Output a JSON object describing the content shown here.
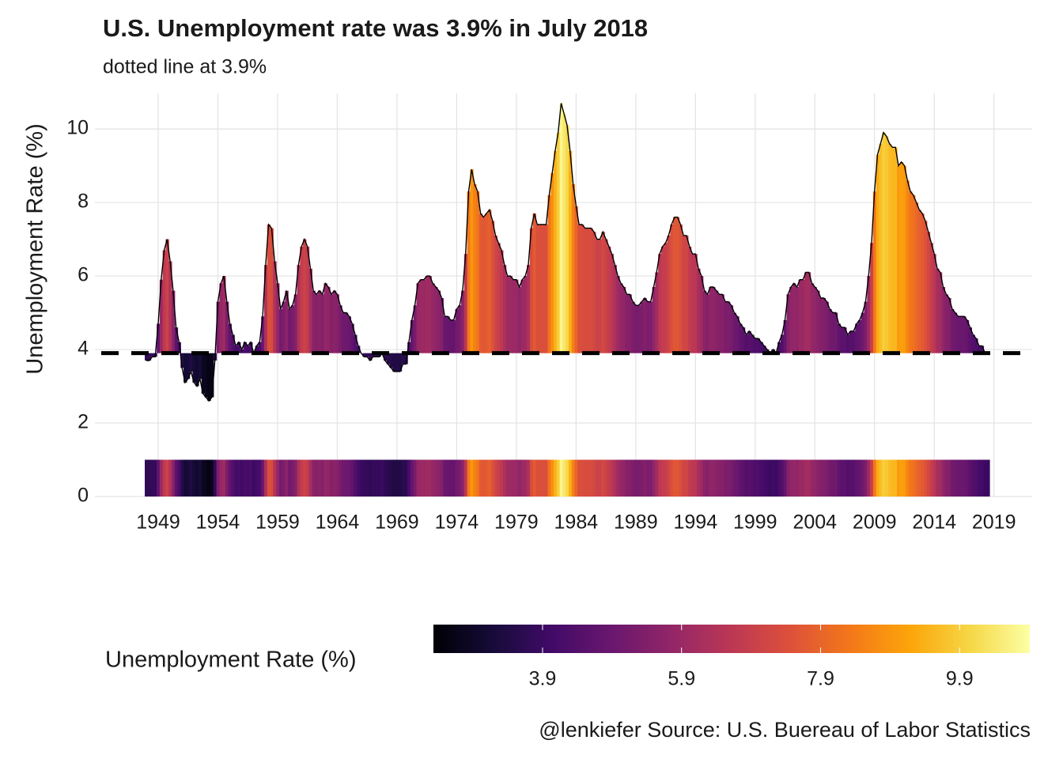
{
  "chart_data": {
    "type": "area",
    "title": "U.S. Unemployment rate was 3.9% in July 2018",
    "subtitle": "dotted line at 3.9%",
    "ylabel": "Unemployment Rate (%)",
    "legend_title": "Unemployment Rate (%)",
    "caption": "@lenkiefer Source: U.S. Buereau of Labor Statistics",
    "reference": 3.9,
    "colormap": "inferno",
    "color_lim": [
      2.33,
      10.91
    ],
    "color_ticks": [
      3.9,
      5.9,
      7.9,
      9.9
    ],
    "xlim": [
      1943.7,
      2022.2
    ],
    "xticks": [
      1949,
      1954,
      1959,
      1964,
      1969,
      1974,
      1979,
      1984,
      1989,
      1994,
      1999,
      2004,
      2009,
      2014,
      2019
    ],
    "ylim": [
      0,
      10.97
    ],
    "yticks": [
      0,
      2,
      4,
      6,
      8,
      10
    ],
    "grid": true,
    "x": [
      1948,
      1948.25,
      1948.5,
      1948.75,
      1949,
      1949.25,
      1949.5,
      1949.75,
      1950,
      1950.25,
      1950.5,
      1950.75,
      1951,
      1951.25,
      1951.5,
      1951.75,
      1952,
      1952.25,
      1952.5,
      1952.75,
      1953,
      1953.25,
      1953.5,
      1953.75,
      1954,
      1954.25,
      1954.5,
      1954.75,
      1955,
      1955.25,
      1955.5,
      1955.75,
      1956,
      1956.25,
      1956.5,
      1956.75,
      1957,
      1957.25,
      1957.5,
      1957.75,
      1958,
      1958.25,
      1958.5,
      1958.75,
      1959,
      1959.25,
      1959.5,
      1959.75,
      1960,
      1960.25,
      1960.5,
      1960.75,
      1961,
      1961.25,
      1961.5,
      1961.75,
      1962,
      1962.25,
      1962.5,
      1962.75,
      1963,
      1963.25,
      1963.5,
      1963.75,
      1964,
      1964.25,
      1964.5,
      1964.75,
      1965,
      1965.25,
      1965.5,
      1965.75,
      1966,
      1966.25,
      1966.5,
      1966.75,
      1967,
      1967.25,
      1967.5,
      1967.75,
      1968,
      1968.25,
      1968.5,
      1968.75,
      1969,
      1969.25,
      1969.5,
      1969.75,
      1970,
      1970.25,
      1970.5,
      1970.75,
      1971,
      1971.25,
      1971.5,
      1971.75,
      1972,
      1972.25,
      1972.5,
      1972.75,
      1973,
      1973.25,
      1973.5,
      1973.75,
      1974,
      1974.25,
      1974.5,
      1974.75,
      1975,
      1975.25,
      1975.5,
      1975.75,
      1976,
      1976.25,
      1976.5,
      1976.75,
      1977,
      1977.25,
      1977.5,
      1977.75,
      1978,
      1978.25,
      1978.5,
      1978.75,
      1979,
      1979.25,
      1979.5,
      1979.75,
      1980,
      1980.25,
      1980.5,
      1980.75,
      1981,
      1981.25,
      1981.5,
      1981.75,
      1982,
      1982.25,
      1982.5,
      1982.75,
      1983,
      1983.25,
      1983.5,
      1983.75,
      1984,
      1984.25,
      1984.5,
      1984.75,
      1985,
      1985.25,
      1985.5,
      1985.75,
      1986,
      1986.25,
      1986.5,
      1986.75,
      1987,
      1987.25,
      1987.5,
      1987.75,
      1988,
      1988.25,
      1988.5,
      1988.75,
      1989,
      1989.25,
      1989.5,
      1989.75,
      1990,
      1990.25,
      1990.5,
      1990.75,
      1991,
      1991.25,
      1991.5,
      1991.75,
      1992,
      1992.25,
      1992.5,
      1992.75,
      1993,
      1993.25,
      1993.5,
      1993.75,
      1994,
      1994.25,
      1994.5,
      1994.75,
      1995,
      1995.25,
      1995.5,
      1995.75,
      1996,
      1996.25,
      1996.5,
      1996.75,
      1997,
      1997.25,
      1997.5,
      1997.75,
      1998,
      1998.25,
      1998.5,
      1998.75,
      1999,
      1999.25,
      1999.5,
      1999.75,
      2000,
      2000.25,
      2000.5,
      2000.75,
      2001,
      2001.25,
      2001.5,
      2001.75,
      2002,
      2002.25,
      2002.5,
      2002.75,
      2003,
      2003.25,
      2003.5,
      2003.75,
      2004,
      2004.25,
      2004.5,
      2004.75,
      2005,
      2005.25,
      2005.5,
      2005.75,
      2006,
      2006.25,
      2006.5,
      2006.75,
      2007,
      2007.25,
      2007.5,
      2007.75,
      2008,
      2008.25,
      2008.5,
      2008.75,
      2009,
      2009.25,
      2009.5,
      2009.75,
      2010,
      2010.25,
      2010.5,
      2010.75,
      2011,
      2011.25,
      2011.5,
      2011.75,
      2012,
      2012.25,
      2012.5,
      2012.75,
      2013,
      2013.25,
      2013.5,
      2013.75,
      2014,
      2014.25,
      2014.5,
      2014.75,
      2015,
      2015.25,
      2015.5,
      2015.75,
      2016,
      2016.25,
      2016.5,
      2016.75,
      2017,
      2017.25,
      2017.5,
      2017.75,
      2018,
      2018.25,
      2018.5
    ],
    "values": [
      3.7,
      3.7,
      3.8,
      3.8,
      4.7,
      5.9,
      6.7,
      7.0,
      6.4,
      5.6,
      4.6,
      4.2,
      3.5,
      3.1,
      3.2,
      3.4,
      3.1,
      3.0,
      3.2,
      2.8,
      2.7,
      2.6,
      2.7,
      3.7,
      5.3,
      5.8,
      6.0,
      5.3,
      4.7,
      4.4,
      4.1,
      4.2,
      4.0,
      4.2,
      4.1,
      4.2,
      3.9,
      4.1,
      4.2,
      4.9,
      6.3,
      7.4,
      7.3,
      6.4,
      5.8,
      5.1,
      5.3,
      5.6,
      5.1,
      5.2,
      5.5,
      6.3,
      6.8,
      7.0,
      6.8,
      6.2,
      5.6,
      5.5,
      5.6,
      5.5,
      5.8,
      5.7,
      5.5,
      5.6,
      5.5,
      5.2,
      5.0,
      5.0,
      4.9,
      4.7,
      4.4,
      4.1,
      3.9,
      3.8,
      3.8,
      3.7,
      3.8,
      3.8,
      3.8,
      3.9,
      3.7,
      3.6,
      3.5,
      3.4,
      3.4,
      3.4,
      3.6,
      3.6,
      4.2,
      4.8,
      5.2,
      5.8,
      5.9,
      5.9,
      6.0,
      6.0,
      5.8,
      5.7,
      5.6,
      5.4,
      4.9,
      4.9,
      4.8,
      4.8,
      5.1,
      5.2,
      5.6,
      6.6,
      8.3,
      8.9,
      8.5,
      8.3,
      7.7,
      7.6,
      7.7,
      7.8,
      7.5,
      7.1,
      6.9,
      6.7,
      6.3,
      6.0,
      6.0,
      5.9,
      5.9,
      5.7,
      5.9,
      6.0,
      6.3,
      7.3,
      7.7,
      7.4,
      7.4,
      7.4,
      7.4,
      8.2,
      8.8,
      9.4,
      9.9,
      10.7,
      10.4,
      10.1,
      9.4,
      8.5,
      7.9,
      7.4,
      7.4,
      7.3,
      7.3,
      7.3,
      7.2,
      7.0,
      7.0,
      7.2,
      7.0,
      6.8,
      6.6,
      6.3,
      6.0,
      5.8,
      5.7,
      5.5,
      5.5,
      5.3,
      5.2,
      5.2,
      5.3,
      5.4,
      5.3,
      5.3,
      5.7,
      6.1,
      6.6,
      6.8,
      6.9,
      7.1,
      7.4,
      7.6,
      7.6,
      7.4,
      7.1,
      7.1,
      6.8,
      6.6,
      6.6,
      6.2,
      6.0,
      5.6,
      5.5,
      5.7,
      5.7,
      5.6,
      5.5,
      5.5,
      5.3,
      5.3,
      5.2,
      5.0,
      4.9,
      4.7,
      4.6,
      4.4,
      4.5,
      4.4,
      4.3,
      4.3,
      4.2,
      4.1,
      4.0,
      3.9,
      4.0,
      3.9,
      4.2,
      4.4,
      4.8,
      5.5,
      5.7,
      5.8,
      5.7,
      5.9,
      5.9,
      6.1,
      6.1,
      5.8,
      5.7,
      5.6,
      5.4,
      5.4,
      5.3,
      5.1,
      5.0,
      5.0,
      4.7,
      4.6,
      4.6,
      4.4,
      4.5,
      4.5,
      4.7,
      4.8,
      5.0,
      5.3,
      6.0,
      6.9,
      8.3,
      9.3,
      9.6,
      9.9,
      9.8,
      9.6,
      9.5,
      9.5,
      9.0,
      9.1,
      9.0,
      8.6,
      8.3,
      8.2,
      8.0,
      7.8,
      7.7,
      7.5,
      7.2,
      6.9,
      6.6,
      6.2,
      6.1,
      5.7,
      5.5,
      5.4,
      5.1,
      5.0,
      4.9,
      4.9,
      4.9,
      4.8,
      4.6,
      4.4,
      4.3,
      4.1,
      4.1,
      3.9,
      3.9
    ]
  }
}
